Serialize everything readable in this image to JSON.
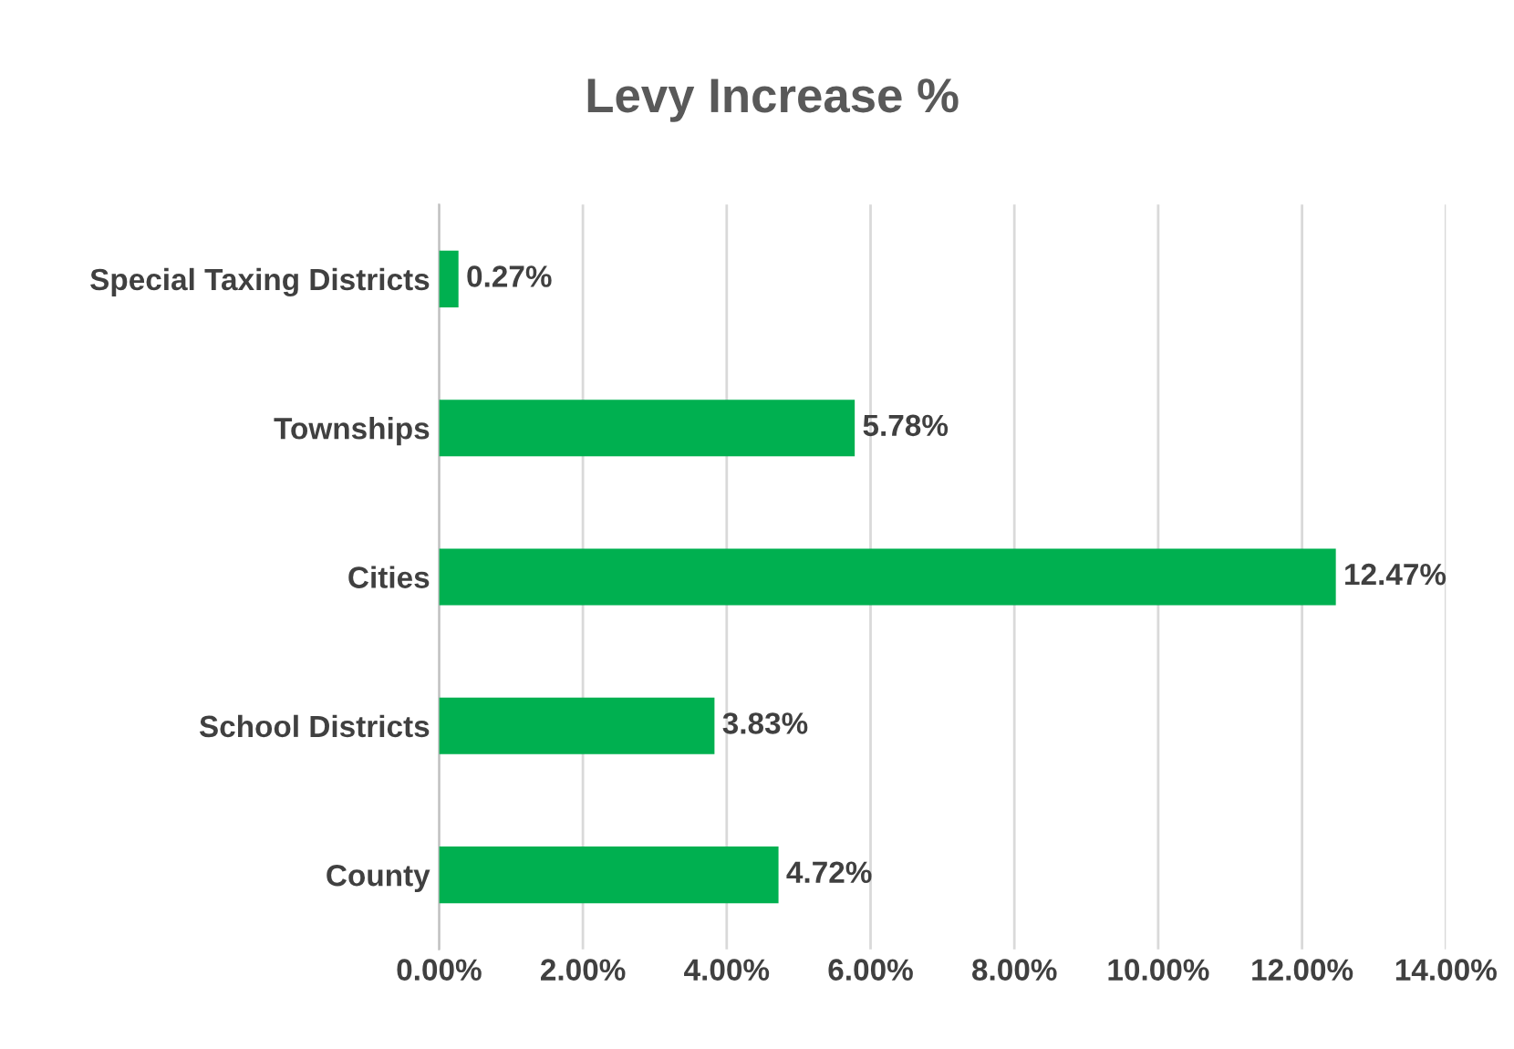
{
  "chart_data": {
    "type": "bar",
    "orientation": "horizontal",
    "title": "Levy Increase %",
    "categories": [
      "Special Taxing Districts",
      "Townships",
      "Cities",
      "School Districts",
      "County"
    ],
    "values": [
      0.27,
      5.78,
      12.47,
      3.83,
      4.72
    ],
    "value_labels": [
      "0.27%",
      "5.78%",
      "12.47%",
      "3.83%",
      "4.72%"
    ],
    "color": "#00b050",
    "xlim": [
      0,
      14
    ],
    "xticks": [
      {
        "value": 0,
        "label": "0.00%"
      },
      {
        "value": 2,
        "label": "2.00%"
      },
      {
        "value": 4,
        "label": "4.00%"
      },
      {
        "value": 6,
        "label": "6.00%"
      },
      {
        "value": 8,
        "label": "8.00%"
      },
      {
        "value": 10,
        "label": "10.00%"
      },
      {
        "value": 12,
        "label": "12.00%"
      },
      {
        "value": 14,
        "label": "14.00%"
      }
    ],
    "grid": "x",
    "legend": false
  }
}
